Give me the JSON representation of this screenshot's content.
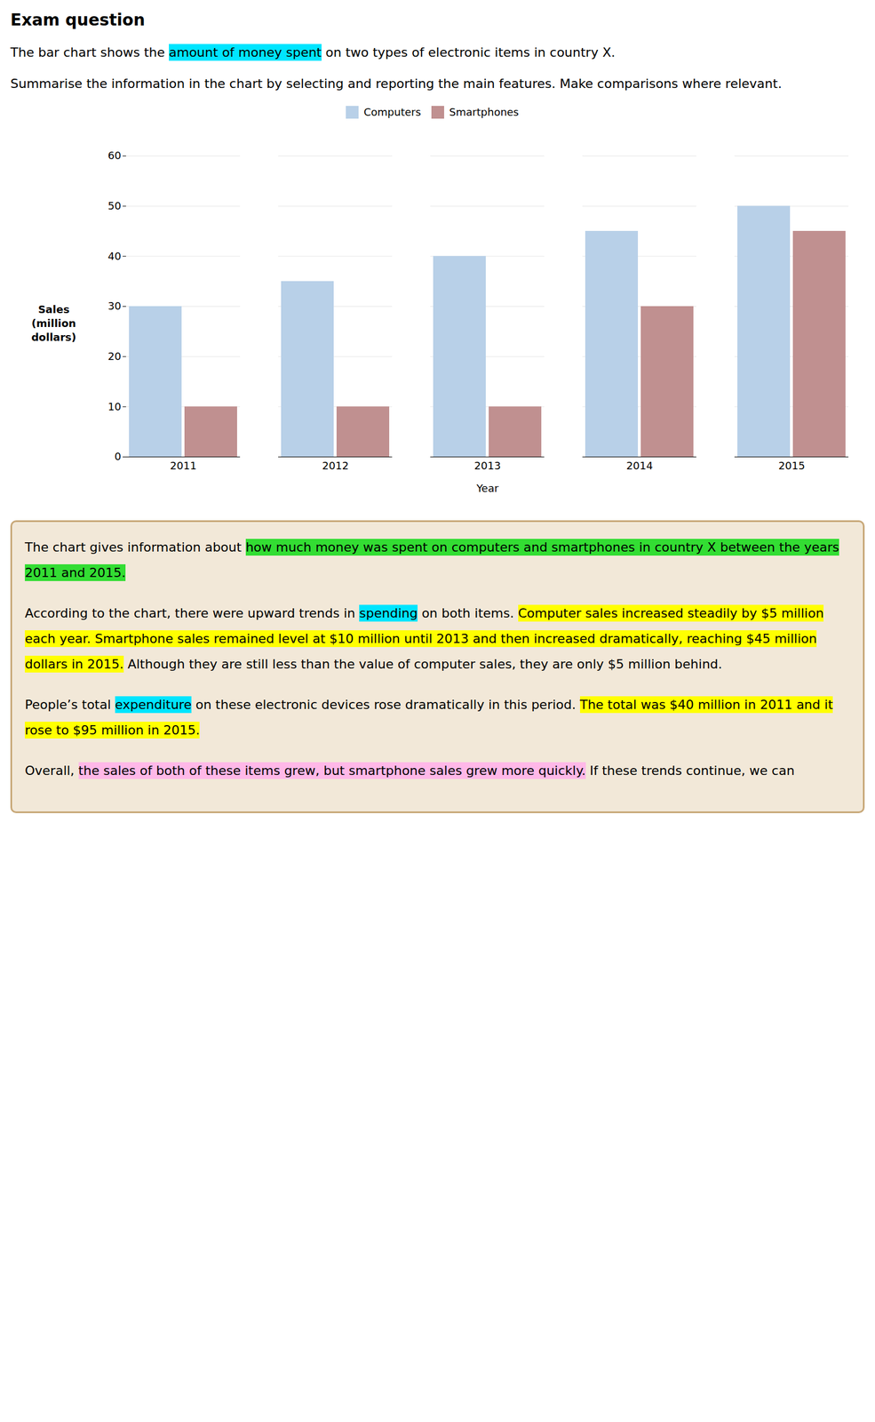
{
  "chart_data": {
    "type": "bar",
    "title": "Exam question",
    "subtitle": [
      [
        {
          "text": "The bar chart shows the "
        },
        {
          "text": "amount of money spent",
          "color": "#00E5FF"
        },
        {
          "text": " on two types of electronic items in country X."
        }
      ],
      [
        {
          "text": "Summarise the information in the chart by selecting and reporting the main features. Make comparisons where relevant."
        }
      ]
    ],
    "categories": [
      "2011",
      "2012",
      "2013",
      "2014",
      "2015"
    ],
    "series": [
      {
        "name": "Computers",
        "color": "#B8D0E8",
        "values": [
          30,
          35,
          40,
          45,
          50
        ]
      },
      {
        "name": "Smartphones",
        "color": "#C09090",
        "values": [
          10,
          10,
          10,
          30,
          45
        ]
      }
    ],
    "xlabel": "Year",
    "ylabel": "Sales\n(million\ndollars)",
    "ylim": [
      0,
      60
    ],
    "yticks": [
      0,
      10,
      20,
      30,
      40,
      50,
      60
    ],
    "grid": true,
    "legend": "top",
    "annotations": [
      [
        {
          "text": "The chart gives information about "
        },
        {
          "text": "how much money was spent on computers and smartphones in country X between the years 2011 and 2015.",
          "color": "#33DD33"
        }
      ],
      [
        {
          "text": "According to the chart, there were upward trends in "
        },
        {
          "text": "spending",
          "color": "#00E5FF"
        },
        {
          "text": " on both items. "
        },
        {
          "text": "Computer sales increased steadily by $5 million each year. Smartphone sales remained level at $10 million until 2013 and then increased dramatically, reaching $45 million dollars in 2015.",
          "color": "#FFFF00"
        },
        {
          "text": " Although they are still less than the value of computer sales, they are only $5 million behind."
        }
      ],
      [
        {
          "text": "People’s total "
        },
        {
          "text": "expenditure",
          "color": "#00E5FF"
        },
        {
          "text": " on these electronic devices rose dramatically in this period. "
        },
        {
          "text": "The total was $40 million in 2011 and it rose to $95 million in 2015.",
          "color": "#FFFF00"
        }
      ],
      [
        {
          "text": "Overall, "
        },
        {
          "text": "the sales of both of these items grew, but smartphone sales grew more quickly.",
          "color": "#FFB8E8"
        },
        {
          "text": " If these trends continue, we can"
        }
      ]
    ]
  }
}
